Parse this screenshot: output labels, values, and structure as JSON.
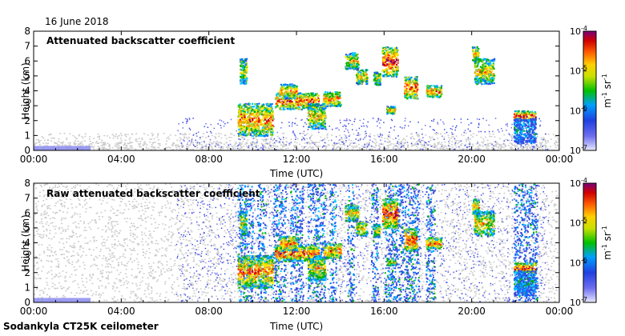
{
  "header": {
    "date": "16 June 2018"
  },
  "footer": {
    "instrument": "Sodankyla CT25K ceilometer"
  },
  "colors": {
    "scale": [
      "#e8e8ff",
      "#6e6ef0",
      "#3a4ae0",
      "#0078ff",
      "#00c8ff",
      "#00b400",
      "#9acd32",
      "#ffe600",
      "#ff9400",
      "#ff2a00",
      "#c80000",
      "#7a007a"
    ],
    "noise": "#cccccc",
    "fog": "#8c8cf0",
    "frame": "#000000"
  },
  "chart_data": [
    {
      "type": "heatmap",
      "title": "Attenuated backscatter coefficient",
      "xlabel": "Time (UTC)",
      "ylabel": "Height (km)",
      "xticks": [
        "00:00",
        "04:00",
        "08:00",
        "12:00",
        "16:00",
        "20:00",
        "00:00"
      ],
      "xlim_hours": [
        0,
        24
      ],
      "yticks": [
        "0",
        "1",
        "2",
        "3",
        "4",
        "5",
        "6",
        "7",
        "8"
      ],
      "ylim_km": [
        0,
        8
      ],
      "grid": false,
      "colorbar": {
        "ticks": [
          "10",
          "10",
          "10",
          "10"
        ],
        "exponents": [
          "-4",
          "-5",
          "-6",
          "-7"
        ],
        "label": "m",
        "label_exp": "-1",
        "label2": " sr",
        "label2_exp": "-1"
      },
      "clouds": [
        {
          "t0": 9.3,
          "t1": 10.9,
          "h0": 1.0,
          "h1": 3.2,
          "level": 0.7
        },
        {
          "t0": 9.4,
          "t1": 9.7,
          "h0": 4.5,
          "h1": 6.2,
          "level": 0.55
        },
        {
          "t0": 11.0,
          "t1": 13.0,
          "h0": 2.8,
          "h1": 3.9,
          "level": 0.75
        },
        {
          "t0": 11.2,
          "t1": 12.0,
          "h0": 3.5,
          "h1": 4.5,
          "level": 0.7
        },
        {
          "t0": 12.5,
          "t1": 13.3,
          "h0": 1.5,
          "h1": 3.2,
          "level": 0.6
        },
        {
          "t0": 13.2,
          "t1": 14.0,
          "h0": 3.0,
          "h1": 4.0,
          "level": 0.7
        },
        {
          "t0": 14.2,
          "t1": 14.8,
          "h0": 5.5,
          "h1": 6.6,
          "level": 0.6
        },
        {
          "t0": 14.7,
          "t1": 15.2,
          "h0": 4.5,
          "h1": 5.5,
          "level": 0.6
        },
        {
          "t0": 15.5,
          "t1": 15.8,
          "h0": 4.4,
          "h1": 5.3,
          "level": 0.55
        },
        {
          "t0": 15.9,
          "t1": 16.6,
          "h0": 5.0,
          "h1": 7.0,
          "level": 0.8
        },
        {
          "t0": 16.1,
          "t1": 16.5,
          "h0": 2.5,
          "h1": 3.0,
          "level": 0.6
        },
        {
          "t0": 16.9,
          "t1": 17.5,
          "h0": 3.5,
          "h1": 5.0,
          "level": 0.75
        },
        {
          "t0": 17.9,
          "t1": 18.6,
          "h0": 3.6,
          "h1": 4.4,
          "level": 0.7
        },
        {
          "t0": 20.0,
          "t1": 20.3,
          "h0": 6.0,
          "h1": 7.0,
          "level": 0.65
        },
        {
          "t0": 20.1,
          "t1": 21.0,
          "h0": 4.5,
          "h1": 6.2,
          "level": 0.6
        },
        {
          "t0": 21.9,
          "t1": 22.9,
          "h0": 2.0,
          "h1": 2.7,
          "level": 0.8
        },
        {
          "t0": 21.9,
          "t1": 22.9,
          "h0": 0.5,
          "h1": 2.2,
          "level": 0.3
        }
      ],
      "fog": {
        "t0": 0.0,
        "t1": 2.6,
        "h1": 0.3
      }
    },
    {
      "type": "heatmap",
      "title": "Raw attenuated backscatter coefficient",
      "xlabel": "Time (UTC)",
      "ylabel": "Height (km)",
      "xticks": [
        "00:00",
        "04:00",
        "08:00",
        "12:00",
        "16:00",
        "20:00",
        "00:00"
      ],
      "xlim_hours": [
        0,
        24
      ],
      "yticks": [
        "0",
        "1",
        "2",
        "3",
        "4",
        "5",
        "6",
        "7",
        "8"
      ],
      "ylim_km": [
        0,
        8
      ],
      "grid": false,
      "colorbar": {
        "ticks": [
          "10",
          "10",
          "10",
          "10"
        ],
        "exponents": [
          "-4",
          "-5",
          "-6",
          "-7"
        ],
        "label": "m",
        "label_exp": "-1",
        "label2": " sr",
        "label2_exp": "-1"
      },
      "precip_columns": [
        {
          "t0": 9.3,
          "t1": 10.0
        },
        {
          "t0": 10.2,
          "t1": 10.6
        },
        {
          "t0": 10.9,
          "t1": 11.5
        },
        {
          "t0": 11.7,
          "t1": 12.3
        },
        {
          "t0": 12.5,
          "t1": 13.3
        },
        {
          "t0": 13.5,
          "t1": 13.8
        },
        {
          "t0": 14.3,
          "t1": 14.6
        },
        {
          "t0": 15.4,
          "t1": 15.7
        },
        {
          "t0": 16.0,
          "t1": 17.6
        },
        {
          "t0": 17.9,
          "t1": 18.3
        },
        {
          "t0": 21.9,
          "t1": 23.0
        }
      ],
      "fog": {
        "t0": 0.0,
        "t1": 2.6,
        "h1": 0.3
      }
    }
  ]
}
